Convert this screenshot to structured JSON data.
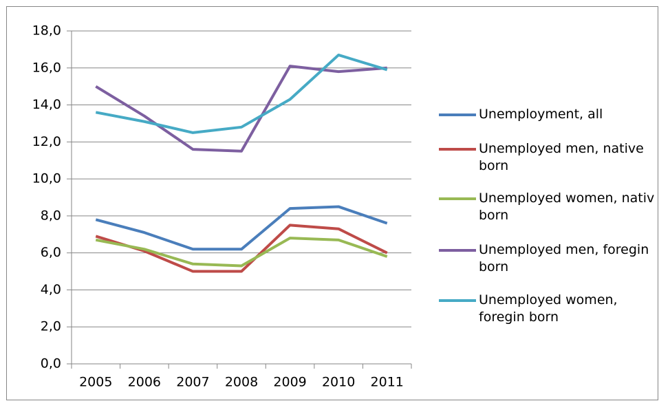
{
  "chart_data": {
    "type": "line",
    "categories": [
      "2005",
      "2006",
      "2007",
      "2008",
      "2009",
      "2010",
      "2011"
    ],
    "series": [
      {
        "name": "Unemployment, all",
        "color": "#4a7ebb",
        "values": [
          7.8,
          7.1,
          6.2,
          6.2,
          8.4,
          8.5,
          7.6
        ]
      },
      {
        "name": "Unemployed men, native born",
        "color": "#be4b48",
        "values": [
          6.9,
          6.1,
          5.0,
          5.0,
          7.5,
          7.3,
          6.0
        ]
      },
      {
        "name": "Unemployed women, nativ born",
        "color": "#98b954",
        "values": [
          6.7,
          6.2,
          5.4,
          5.3,
          6.8,
          6.7,
          5.8
        ]
      },
      {
        "name": "Unemployed men, foregin born",
        "color": "#7d5fa0",
        "values": [
          15.0,
          13.4,
          11.6,
          11.5,
          16.1,
          15.8,
          16.0
        ]
      },
      {
        "name": "Unemployed women, foregin born",
        "color": "#46aac5",
        "values": [
          13.6,
          13.1,
          12.5,
          12.8,
          14.3,
          16.7,
          15.9
        ]
      }
    ],
    "ylim": [
      0,
      18
    ],
    "yticks": [
      {
        "value": 0,
        "label": "0,0"
      },
      {
        "value": 2,
        "label": "2,0"
      },
      {
        "value": 4,
        "label": "4,0"
      },
      {
        "value": 6,
        "label": "6,0"
      },
      {
        "value": 8,
        "label": "8,0"
      },
      {
        "value": 10,
        "label": "10,0"
      },
      {
        "value": 12,
        "label": "12,0"
      },
      {
        "value": 14,
        "label": "14,0"
      },
      {
        "value": 16,
        "label": "16,0"
      },
      {
        "value": 18,
        "label": "18,0"
      }
    ],
    "grid": true,
    "legend": "right"
  }
}
